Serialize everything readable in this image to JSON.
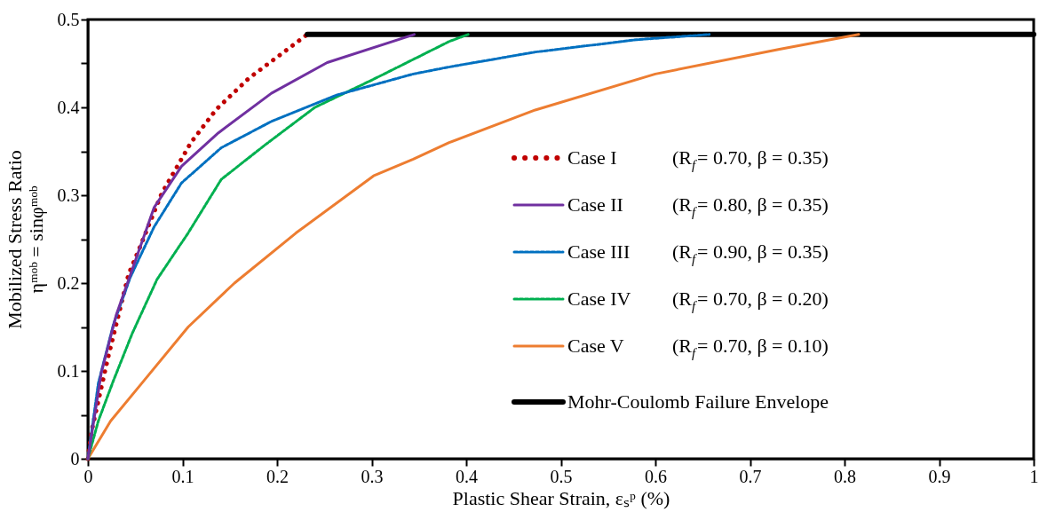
{
  "chart_data": {
    "type": "line",
    "xlabel": "Plastic Shear Strain, εₛᵖ (%)",
    "ylabel": "Mobilized Stress Ratio\nηᵐᵒᵇ = sinφᵐᵒᵇ",
    "xlim": [
      0,
      1
    ],
    "ylim": [
      0,
      0.5
    ],
    "xticks": [
      0,
      0.1,
      0.2,
      0.3,
      0.4,
      0.5,
      0.6,
      0.7,
      0.8,
      0.9,
      1
    ],
    "yticks": [
      0,
      {
        "value": 0.05,
        "label": null
      },
      0.1,
      {
        "value": 0.15,
        "label": null
      },
      0.2,
      {
        "value": 0.25,
        "label": null
      },
      0.3,
      {
        "value": 0.35,
        "label": null
      },
      0.4,
      {
        "value": 0.45,
        "label": null
      },
      0.5
    ],
    "grid": false,
    "legend": "bottom right",
    "marker": "none",
    "series": [
      {
        "name": "Case I    (R$_{f}$= 0.70, β = 0.35)",
        "color": "#c00000",
        "line_style": "dotted",
        "x": [
          0,
          0.004,
          0.021,
          0.043,
          0.055,
          0.078,
          0.109,
          0.136,
          0.17,
          0.232
        ],
        "values": [
          0,
          0.032,
          0.114,
          0.21,
          0.241,
          0.302,
          0.36,
          0.398,
          0.433,
          0.483
        ]
      },
      {
        "name": "Case II   (R$_{f}$= 0.80, β = 0.35)",
        "color": "#7030a0",
        "line_style": "solid",
        "x": [
          0,
          0.014,
          0.03,
          0.05,
          0.07,
          0.099,
          0.138,
          0.194,
          0.253,
          0.345
        ],
        "values": [
          0,
          0.097,
          0.164,
          0.225,
          0.286,
          0.333,
          0.371,
          0.416,
          0.451,
          0.483
        ]
      },
      {
        "name": "Case III  (R$_{f}$= 0.90, β = 0.35)",
        "color": "#0070c0",
        "line_style": "dashed",
        "x": [
          0,
          0.011,
          0.027,
          0.045,
          0.07,
          0.099,
          0.141,
          0.194,
          0.263,
          0.344,
          0.382,
          0.473,
          0.58,
          0.657
        ],
        "values": [
          0,
          0.086,
          0.153,
          0.207,
          0.264,
          0.314,
          0.354,
          0.384,
          0.414,
          0.438,
          0.446,
          0.463,
          0.477,
          0.483
        ]
      },
      {
        "name": "Case IV  (R$_{f}$= 0.70, β = 0.20)",
        "color": "#00b050",
        "line_style": "dashed",
        "x": [
          0,
          0.011,
          0.027,
          0.047,
          0.073,
          0.106,
          0.141,
          0.187,
          0.24,
          0.302,
          0.382,
          0.402
        ],
        "values": [
          0,
          0.043,
          0.089,
          0.143,
          0.204,
          0.257,
          0.318,
          0.357,
          0.4,
          0.432,
          0.475,
          0.483
        ]
      },
      {
        "name": "Case V    (R$_{f}$= 0.70, β = 0.10)",
        "color": "#ed7d31",
        "line_style": "solid",
        "x": [
          0,
          0.024,
          0.057,
          0.106,
          0.155,
          0.22,
          0.302,
          0.344,
          0.382,
          0.473,
          0.6,
          0.73,
          0.815
        ],
        "values": [
          0,
          0.043,
          0.086,
          0.15,
          0.2,
          0.257,
          0.322,
          0.341,
          0.36,
          0.397,
          0.438,
          0.466,
          0.483
        ]
      },
      {
        "name": "Mohr-Coulomb Failure Envelope",
        "color": "#000000",
        "line_style": "solid",
        "x": [
          0.232,
          1
        ],
        "values": [
          0.483,
          0.483
        ]
      }
    ]
  }
}
